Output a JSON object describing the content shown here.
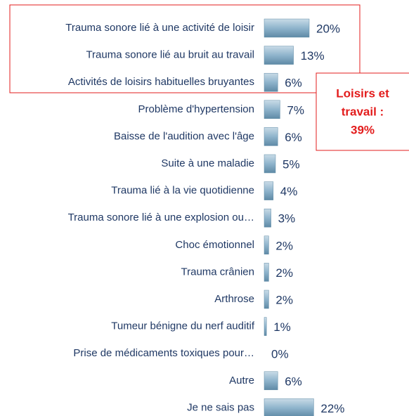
{
  "chart_data": {
    "type": "bar",
    "orientation": "horizontal",
    "categories": [
      "Trauma sonore lié à une activité de loisir",
      "Trauma sonore lié au bruit au travail",
      "Activités de loisirs habituelles bruyantes",
      "Problème d'hypertension",
      "Baisse de l'audition avec l'âge",
      "Suite à une maladie",
      "Trauma lié à la vie quotidienne",
      "Trauma sonore lié à une explosion ou…",
      "Choc émotionnel",
      "Trauma crânien",
      "Arthrose",
      "Tumeur bénigne du nerf auditif",
      "Prise de médicaments toxiques pour…",
      "Autre",
      "Je ne sais pas"
    ],
    "values": [
      20,
      13,
      6,
      7,
      6,
      5,
      4,
      3,
      2,
      2,
      2,
      1,
      0,
      6,
      22
    ],
    "value_labels": [
      "20%",
      "13%",
      "6%",
      "7%",
      "6%",
      "5%",
      "4%",
      "3%",
      "2%",
      "2%",
      "2%",
      "1%",
      "0%",
      "6%",
      "22%"
    ],
    "color": "#8fb4cc",
    "annotation": [
      "Loisirs et",
      "travail :",
      "39%"
    ]
  }
}
